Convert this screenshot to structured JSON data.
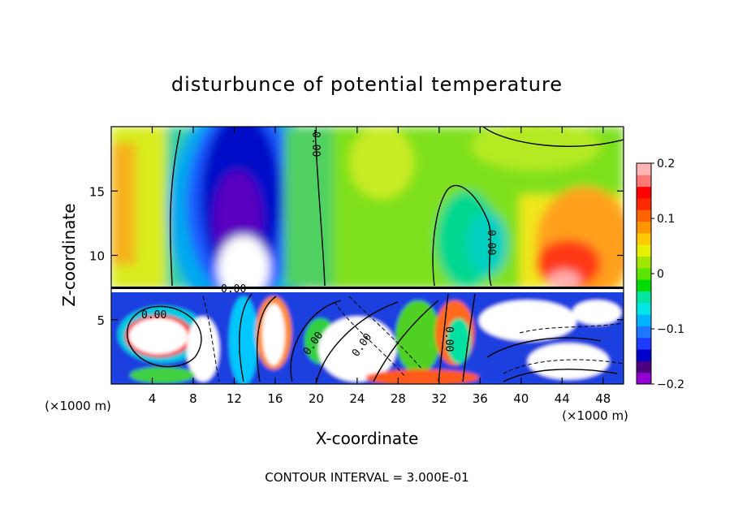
{
  "chart_data": {
    "type": "heatmap",
    "title": "disturbunce of potential temperature",
    "xlabel": "X-coordinate",
    "ylabel": "Z-coordinate",
    "x_unit_label": "(×1000 m)",
    "x_unit_label_right": "(×1000 m)",
    "footer": "CONTOUR INTERVAL = 3.000E-01",
    "xlim": [
      0,
      50
    ],
    "ylim": [
      0,
      20
    ],
    "x_ticks": [
      4,
      8,
      12,
      16,
      20,
      24,
      28,
      32,
      36,
      40,
      44,
      48
    ],
    "y_ticks": [
      5,
      10,
      15
    ],
    "colorbar": {
      "min": -0.2,
      "max": 0.2,
      "ticks": [
        {
          "value": 0.2,
          "label": "0.2"
        },
        {
          "value": 0.1,
          "label": "0.1"
        },
        {
          "value": 0,
          "label": "0"
        },
        {
          "value": -0.1,
          "label": "−0.1"
        },
        {
          "value": -0.2,
          "label": "−0.2"
        }
      ],
      "colors": [
        "#9400d3",
        "#4b0082",
        "#0000cd",
        "#1e3cff",
        "#1e78ff",
        "#00b4ff",
        "#00e6e6",
        "#00e6a0",
        "#00dc00",
        "#5ae600",
        "#a0e600",
        "#e6f000",
        "#ffc800",
        "#ff9600",
        "#ff6400",
        "#ff2800",
        "#ff0000",
        "#ff7878",
        "#ffb4b4"
      ]
    },
    "contour_labels": [
      "0.00",
      "0.00",
      "0.00",
      "0.00",
      "0.00",
      "0.00",
      "0.00"
    ]
  }
}
